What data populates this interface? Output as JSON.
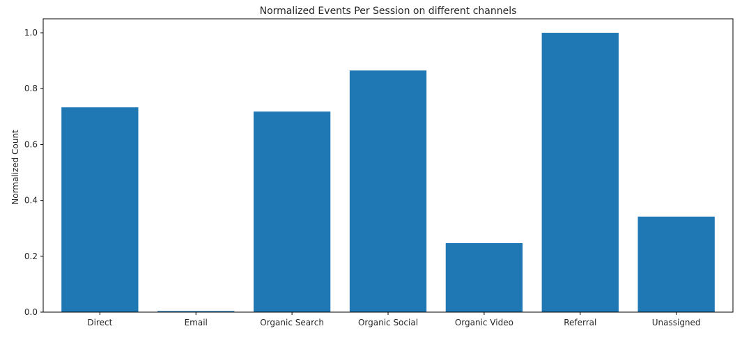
{
  "chart_data": {
    "type": "bar",
    "title": "Normalized Events Per Session on different channels",
    "xlabel": "",
    "ylabel": "Normalized Count",
    "categories": [
      "Direct",
      "Email",
      "Organic Search",
      "Organic Social",
      "Organic Video",
      "Referral",
      "Unassigned"
    ],
    "values": [
      0.733,
      0.004,
      0.718,
      0.865,
      0.247,
      1.0,
      0.342
    ],
    "ylim": [
      0,
      1.05
    ],
    "yticks": [
      0.0,
      0.2,
      0.4,
      0.6,
      0.8,
      1.0
    ],
    "ytick_labels": [
      "0.0",
      "0.2",
      "0.4",
      "0.6",
      "0.8",
      "1.0"
    ],
    "grid": false,
    "legend": "none",
    "bar_color": "#1f77b4"
  }
}
